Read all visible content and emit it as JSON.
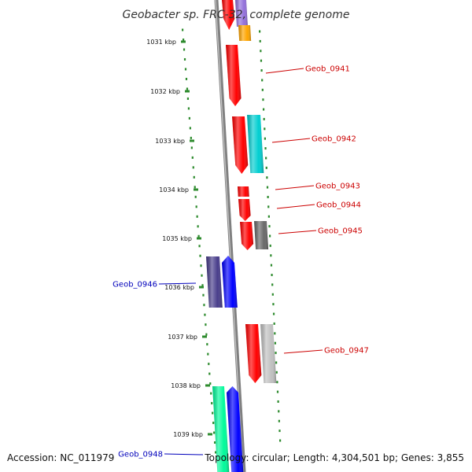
{
  "title": "Geobacter sp. FRC-32, complete genome",
  "footer": {
    "accession": "Accession: NC_011979",
    "topology": "Topology: circular; Length: 4,304,501 bp; Genes: 3,855"
  },
  "colors": {
    "background": "#ffffff",
    "backbone": "#808080",
    "ruler_dots": "#2e8b2e",
    "right_label": "#cc0000",
    "left_label": "#0000bb"
  },
  "ticks": [
    "1031 kbp",
    "1032 kbp",
    "1033 kbp",
    "1034 kbp",
    "1035 kbp",
    "1036 kbp",
    "1037 kbp",
    "1038 kbp",
    "1039 kbp"
  ],
  "gene_labels": [
    {
      "id": "Geob_0941",
      "side": "right"
    },
    {
      "id": "Geob_0942",
      "side": "right"
    },
    {
      "id": "Geob_0943",
      "side": "right"
    },
    {
      "id": "Geob_0944",
      "side": "right"
    },
    {
      "id": "Geob_0945",
      "side": "right"
    },
    {
      "id": "Geob_0946",
      "side": "left"
    },
    {
      "id": "Geob_0947",
      "side": "right"
    },
    {
      "id": "Geob_0948",
      "side": "left"
    }
  ],
  "features": [
    {
      "color": "red"
    },
    {
      "color": "mediumpurple"
    },
    {
      "color": "orange"
    },
    {
      "color": "red"
    },
    {
      "color": "red"
    },
    {
      "color": "darkturquoise"
    },
    {
      "color": "red"
    },
    {
      "color": "red"
    },
    {
      "color": "red"
    },
    {
      "color": "dimgray"
    },
    {
      "color": "darkslateblue"
    },
    {
      "color": "blue"
    },
    {
      "color": "red"
    },
    {
      "color": "silver"
    },
    {
      "color": "mediumspringgreen"
    },
    {
      "color": "blue"
    }
  ]
}
